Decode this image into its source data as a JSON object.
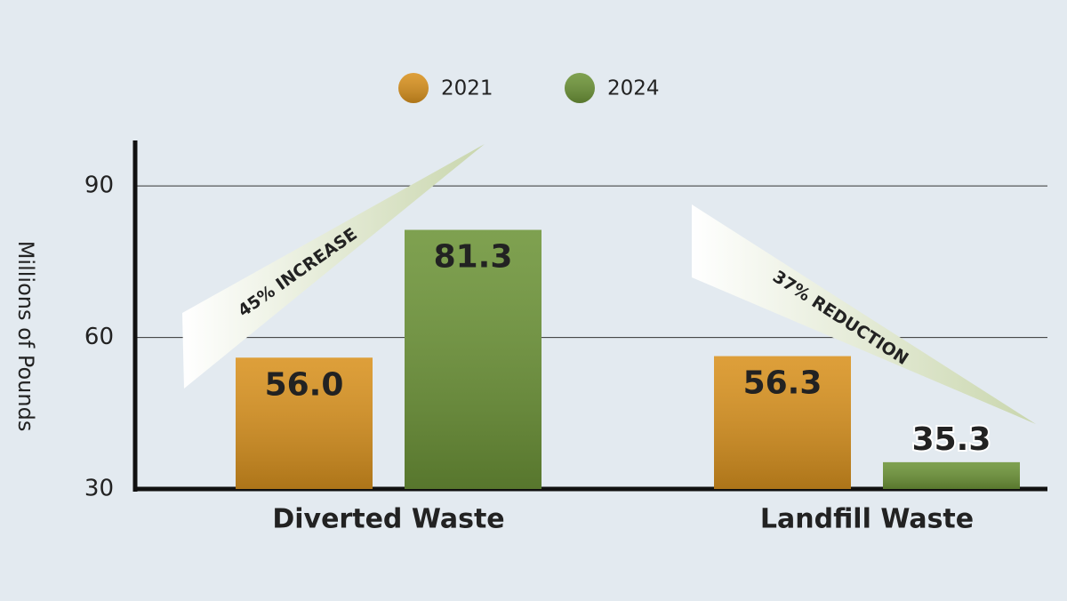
{
  "chart_data": {
    "type": "bar",
    "y_label": "Millions of Pounds",
    "categories": [
      "Diverted Waste",
      "Landfill Waste"
    ],
    "series": [
      {
        "name": "2021",
        "color": "#d9921f",
        "values": [
          56.0,
          56.3
        ],
        "value_labels": [
          "56.0",
          "56.3"
        ]
      },
      {
        "name": "2024",
        "color": "#6d9438",
        "values": [
          81.3,
          35.3
        ],
        "value_labels": [
          "81.3",
          "35.3"
        ]
      }
    ],
    "ylim": [
      30,
      99
    ],
    "yticks": [
      30,
      60,
      90
    ],
    "grid": true,
    "annotations": [
      "45% INCREASE",
      "37% REDUCTION"
    ]
  }
}
